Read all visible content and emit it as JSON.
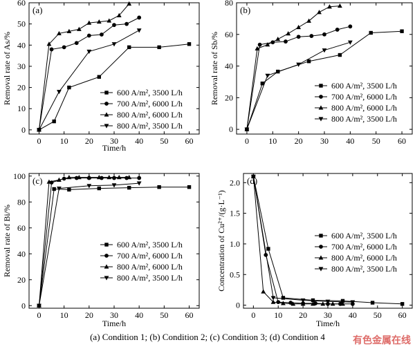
{
  "caption": "(a) Condition 1; (b) Condition 2; (c) Condition 3; (d) Condition 4",
  "watermark": "有色金属在线",
  "chart_data": [
    {
      "id": "a",
      "type": "line",
      "panel_label": "(a)",
      "xlabel": "Time/h",
      "ylabel": "Removal rate of As/%",
      "xlim": [
        -4,
        64
      ],
      "ylim": [
        -2,
        60
      ],
      "xticks": [
        0,
        10,
        20,
        30,
        40,
        50,
        60
      ],
      "yticks": [
        0,
        10,
        20,
        30,
        40,
        50,
        60
      ],
      "ytick_labels": [
        "0",
        "10",
        "20",
        "30",
        "40",
        "50",
        "60"
      ],
      "legend_position": "center-right",
      "series": [
        {
          "name": "600 A/m², 3500 L/h",
          "marker": "square",
          "x": [
            0,
            6,
            12,
            24,
            36,
            48,
            60
          ],
          "y": [
            0,
            4,
            20,
            25,
            39,
            39,
            40.5
          ]
        },
        {
          "name": "700 A/m², 6000 L/h",
          "marker": "circle",
          "x": [
            0,
            5,
            10,
            15,
            20,
            25,
            30,
            35,
            40
          ],
          "y": [
            0,
            38,
            39,
            41,
            44.5,
            45,
            49.5,
            50,
            53
          ]
        },
        {
          "name": "800 A/m², 6000 L/h",
          "marker": "triangle-up",
          "x": [
            0,
            4,
            8,
            12,
            16,
            20,
            24,
            28,
            32,
            36
          ],
          "y": [
            0,
            40.5,
            45.5,
            46.5,
            47.5,
            50.5,
            51,
            51.5,
            54,
            59.5
          ]
        },
        {
          "name": "800 A/m², 3500 L/h",
          "marker": "triangle-down",
          "x": [
            0,
            8,
            20,
            30,
            40
          ],
          "y": [
            0,
            18,
            37,
            40.5,
            47
          ]
        }
      ]
    },
    {
      "id": "b",
      "type": "line",
      "panel_label": "(b)",
      "xlabel": "",
      "ylabel": "Removal rate of Sb/%",
      "xlim": [
        -4,
        64
      ],
      "ylim": [
        -3,
        80
      ],
      "xticks": [
        0,
        10,
        20,
        30,
        40,
        50,
        60
      ],
      "yticks": [
        0,
        20,
        40,
        60,
        80
      ],
      "ytick_labels": [
        "0",
        "20",
        "40",
        "60",
        "80"
      ],
      "legend_position": "center-right",
      "series": [
        {
          "name": "600 A/m², 3500 L/h",
          "marker": "square",
          "x": [
            0,
            6,
            12,
            24,
            36,
            48,
            60
          ],
          "y": [
            0,
            29,
            36.5,
            43,
            47,
            61,
            62
          ]
        },
        {
          "name": "700 A/m², 6000 L/h",
          "marker": "circle",
          "x": [
            0,
            5,
            10,
            15,
            20,
            25,
            30,
            35,
            40
          ],
          "y": [
            0,
            53.5,
            55,
            55.5,
            58.5,
            59,
            60,
            63,
            65
          ]
        },
        {
          "name": "800 A/m², 6000 L/h",
          "marker": "triangle-up",
          "x": [
            0,
            4,
            8,
            12,
            16,
            20,
            24,
            28,
            32,
            36
          ],
          "y": [
            0,
            51,
            53.5,
            57,
            60.5,
            64.5,
            68.5,
            74,
            77.5,
            78
          ]
        },
        {
          "name": "800 A/m², 3500 L/h",
          "marker": "triangle-down",
          "x": [
            0,
            8,
            20,
            30,
            40
          ],
          "y": [
            0,
            34,
            41,
            50,
            55
          ]
        }
      ]
    },
    {
      "id": "c",
      "type": "line",
      "panel_label": "(c)",
      "xlabel": "Time/h",
      "ylabel": "Removal rate of Bi/%",
      "xlim": [
        -4,
        64
      ],
      "ylim": [
        -2,
        102
      ],
      "xticks": [
        0,
        10,
        20,
        30,
        40,
        50,
        60
      ],
      "yticks": [
        0,
        20,
        40,
        60,
        80,
        100
      ],
      "ytick_labels": [
        "0",
        "20",
        "40",
        "60",
        "80",
        "100"
      ],
      "legend_position": "center-right",
      "series": [
        {
          "name": "600 A/m², 3500 L/h",
          "marker": "square",
          "x": [
            0,
            6,
            12,
            24,
            36,
            48,
            60
          ],
          "y": [
            0,
            90,
            89.5,
            90.5,
            91,
            91.5,
            91.5
          ]
        },
        {
          "name": "700 A/m², 6000 L/h",
          "marker": "circle",
          "x": [
            0,
            5,
            10,
            15,
            20,
            25,
            30,
            35,
            40
          ],
          "y": [
            0,
            95,
            98,
            98.5,
            98.5,
            98.5,
            98.5,
            98.5,
            98.5
          ]
        },
        {
          "name": "800 A/m², 6000 L/h",
          "marker": "triangle-up",
          "x": [
            0,
            4,
            8,
            12,
            16,
            20,
            24,
            28,
            32,
            36
          ],
          "y": [
            0,
            95.5,
            97,
            99,
            99,
            99,
            99,
            99,
            99,
            99
          ]
        },
        {
          "name": "800 A/m², 3500 L/h",
          "marker": "triangle-down",
          "x": [
            0,
            8,
            20,
            30,
            40
          ],
          "y": [
            0,
            90.5,
            92.5,
            93,
            94.5
          ]
        }
      ]
    },
    {
      "id": "d",
      "type": "line",
      "panel_label": "(d)",
      "xlabel": "Time/h",
      "ylabel": "Concentration of Cu²⁺/(g·L⁻¹)",
      "xlim": [
        -4,
        64
      ],
      "ylim": [
        -0.05,
        2.15
      ],
      "xticks": [
        0,
        10,
        20,
        30,
        40,
        50,
        60
      ],
      "yticks": [
        0,
        0.5,
        1.0,
        1.5,
        2.0
      ],
      "ytick_labels": [
        "0",
        "0.5",
        "1.0",
        "1.5",
        "2.0"
      ],
      "legend_position": "center-right",
      "series": [
        {
          "name": "600 A/m², 3500 L/h",
          "marker": "square",
          "x": [
            0,
            6,
            12,
            24,
            36,
            48,
            60
          ],
          "y": [
            2.1,
            0.92,
            0.12,
            0.08,
            0.07,
            0.04,
            0.02
          ]
        },
        {
          "name": "700 A/m², 6000 L/h",
          "marker": "circle",
          "x": [
            0,
            5,
            10,
            15,
            20,
            25,
            30,
            35,
            40
          ],
          "y": [
            2.1,
            0.82,
            0.05,
            0.04,
            0.03,
            0.03,
            0.02,
            0.02,
            0.02
          ]
        },
        {
          "name": "800 A/m², 6000 L/h",
          "marker": "triangle-up",
          "x": [
            0,
            4,
            8,
            12,
            16,
            20,
            24,
            28,
            32,
            36
          ],
          "y": [
            2.1,
            0.22,
            0.05,
            0.03,
            0.02,
            0.02,
            0.02,
            0.02,
            0.02,
            0.02
          ]
        },
        {
          "name": "800 A/m², 3500 L/h",
          "marker": "triangle-down",
          "x": [
            0,
            8,
            20,
            30,
            40
          ],
          "y": [
            2.1,
            0.12,
            0.08,
            0.06,
            0.05
          ]
        }
      ]
    }
  ]
}
